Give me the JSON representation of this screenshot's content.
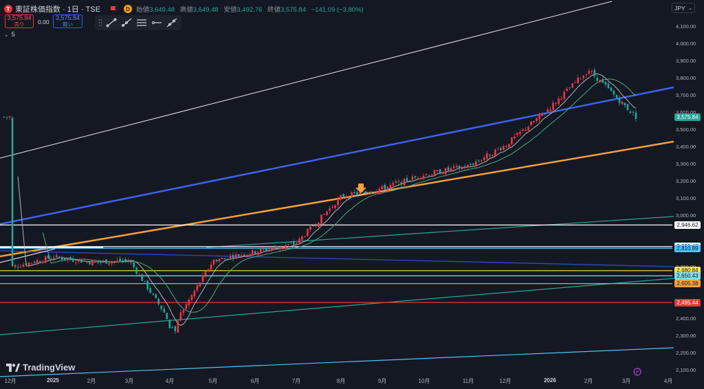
{
  "header": {
    "symbol": "東証株価指数 · 1日 · TSE",
    "ohlc": {
      "open_label": "始値",
      "open": "3,649.48",
      "high_label": "高値",
      "high": "3,649.48",
      "low_label": "安値",
      "low": "3,492.76",
      "close_label": "終値",
      "close": "3,575.84",
      "change": "−141.09 (−3.80%)"
    },
    "sell_price": "3,575.84",
    "sell_label": "売り",
    "spread": "0.00",
    "buy_price": "3,575.84",
    "buy_label": "買い",
    "indicator_count": "5",
    "badge_letter": "D"
  },
  "toolbar_icons": [
    "trend-line-icon",
    "ray-icon",
    "parallel-channel-icon",
    "horizontal-ray-icon",
    "extended-line-icon"
  ],
  "currency": "JPY",
  "logo_text": "TradingView",
  "colors": {
    "up": "#f23645",
    "down": "#26a69a",
    "accent_blue": "#3d63f0",
    "accent_orange": "#f5a03c",
    "bg": "#141823"
  },
  "y_axis": {
    "labels": [
      "4,100.00",
      "4,000.00",
      "3,900.00",
      "3,800.00",
      "3,700.00",
      "3,600.00",
      "3,500.00",
      "3,400.00",
      "3,300.00",
      "3,200.00",
      "3,100.00",
      "3,000.00",
      "2,700.00",
      "2,400.00",
      "2,300.00",
      "2,200.00",
      "2,100.00"
    ],
    "min": 2100,
    "max": 4100
  },
  "x_axis": {
    "labels": [
      {
        "text": "12月",
        "bold": false
      },
      {
        "text": "2025",
        "bold": true
      },
      {
        "text": "2月",
        "bold": false
      },
      {
        "text": "3月",
        "bold": false
      },
      {
        "text": "4月",
        "bold": false
      },
      {
        "text": "5月",
        "bold": false
      },
      {
        "text": "6月",
        "bold": false
      },
      {
        "text": "7月",
        "bold": false
      },
      {
        "text": "8月",
        "bold": false
      },
      {
        "text": "9月",
        "bold": false
      },
      {
        "text": "10月",
        "bold": false
      },
      {
        "text": "11月",
        "bold": false
      },
      {
        "text": "12月",
        "bold": false
      },
      {
        "text": "2026",
        "bold": true
      },
      {
        "text": "2月",
        "bold": false
      },
      {
        "text": "3月",
        "bold": false
      },
      {
        "text": "4月",
        "bold": false
      }
    ]
  },
  "price_labels": [
    {
      "value": "3,575.84",
      "price": 3575.84,
      "bg": "#26a69a",
      "fg": "#ffffff"
    },
    {
      "value": "2,946.62",
      "price": 2946.62,
      "bg": "#ffffff",
      "fg": "#141823"
    },
    {
      "value": "2,820.40",
      "price": 2820.4,
      "bg": "#ffffff",
      "fg": "#141823"
    },
    {
      "value": "2,810.89",
      "price": 2810.89,
      "bg": "#4fc3f7",
      "fg": "#141823"
    },
    {
      "value": "2,680.84",
      "price": 2680.84,
      "bg": "#ffeb3b",
      "fg": "#141823"
    },
    {
      "value": "2,650.43",
      "price": 2650.43,
      "bg": "#80deea",
      "fg": "#141823"
    },
    {
      "value": "2,605.38",
      "price": 2605.38,
      "bg": "#f5a03c",
      "fg": "#141823"
    },
    {
      "value": "2,495.44",
      "price": 2495.44,
      "bg": "#e53935",
      "fg": "#ffffff"
    }
  ],
  "horizontal_lines": [
    {
      "price": 2946.62,
      "color": "#ffffff"
    },
    {
      "price": 2820.4,
      "color": "#ffffff"
    },
    {
      "price": 2810.89,
      "color": "#4fc3f7"
    },
    {
      "price": 2680.84,
      "color": "#ffeb3b"
    },
    {
      "price": 2650.43,
      "color": "#80deea"
    },
    {
      "price": 2605.38,
      "color": "#f5a03c"
    },
    {
      "price": 2495.44,
      "color": "#e53935"
    }
  ],
  "chart_data": {
    "type": "candlestick",
    "y_range": [
      2100,
      4100
    ],
    "ohlc_close_path": [
      {
        "date": "2024-12",
        "close": 2700
      },
      {
        "date": "2025-01",
        "close": 2760
      },
      {
        "date": "2025-02",
        "close": 2730
      },
      {
        "date": "2025-03",
        "close": 2740
      },
      {
        "date": "2025-04",
        "close": 2360
      },
      {
        "date": "2025-05",
        "close": 2740
      },
      {
        "date": "2025-06",
        "close": 2790
      },
      {
        "date": "2025-07",
        "close": 2840
      },
      {
        "date": "2025-08",
        "close": 3110
      },
      {
        "date": "2025-09",
        "close": 3160
      },
      {
        "date": "2025-10",
        "close": 3240
      },
      {
        "date": "2025-11",
        "close": 3290
      },
      {
        "date": "2025-12",
        "close": 3410
      },
      {
        "date": "2026-01",
        "close": 3630
      },
      {
        "date": "2026-02",
        "close": 3850
      },
      {
        "date": "2026-03",
        "close": 3575.84
      }
    ]
  }
}
